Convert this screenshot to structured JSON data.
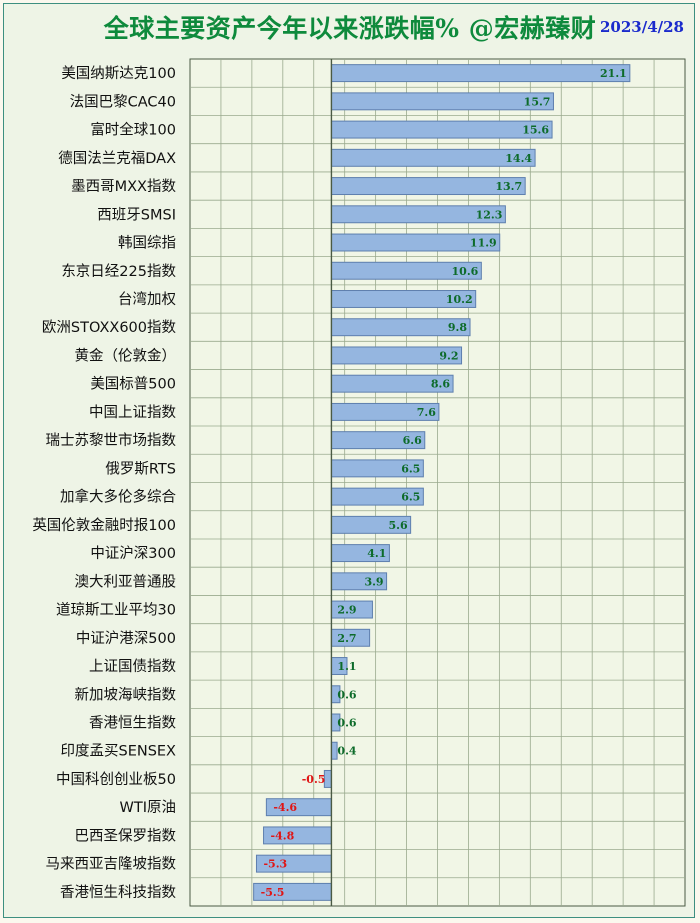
{
  "header": {
    "title": "全球主要资产今年以来涨跌幅% @宏赫臻财",
    "date": "2023/4/28"
  },
  "colors": {
    "bar_fill": "#95b6e0",
    "bar_stroke": "#5e7fae",
    "positive_label": "#0d6b2a",
    "negative_label": "#e01515",
    "title": "#0e8a3c",
    "date": "#1a2acc",
    "grid": "#9aaa8e",
    "plot_bg": "#f1f6e6",
    "axis": "#4a5a44"
  },
  "chart_data": {
    "type": "bar",
    "orientation": "horizontal",
    "title": "全球主要资产今年以来涨跌幅% @宏赫臻财",
    "xlim": [
      -10,
      25
    ],
    "grid": true,
    "categories": [
      "美国纳斯达克100",
      "法国巴黎CAC40",
      "富时全球100",
      "德国法兰克福DAX",
      "墨西哥MXX指数",
      "西班牙SMSI",
      "韩国综指",
      "东京日经225指数",
      "台湾加权",
      "欧洲STOXX600指数",
      "黄金（伦敦金）",
      "美国标普500",
      "中国上证指数",
      "瑞士苏黎世市场指数",
      "俄罗斯RTS",
      "加拿大多伦多综合",
      "英国伦敦金融时报100",
      "中证沪深300",
      "澳大利亚普通股",
      "道琼斯工业平均30",
      "中证沪港深500",
      "上证国债指数",
      "新加坡海峡指数",
      "香港恒生指数",
      "印度孟买SENSEX",
      "中国科创创业板50",
      "WTI原油",
      "巴西圣保罗指数",
      "马来西亚吉隆坡指数",
      "香港恒生科技指数"
    ],
    "values": [
      21.1,
      15.7,
      15.6,
      14.4,
      13.7,
      12.3,
      11.9,
      10.6,
      10.2,
      9.8,
      9.2,
      8.6,
      7.6,
      6.6,
      6.5,
      6.5,
      5.6,
      4.1,
      3.9,
      2.9,
      2.7,
      1.1,
      0.6,
      0.6,
      0.4,
      -0.5,
      -4.6,
      -4.8,
      -5.3,
      -5.5
    ]
  }
}
